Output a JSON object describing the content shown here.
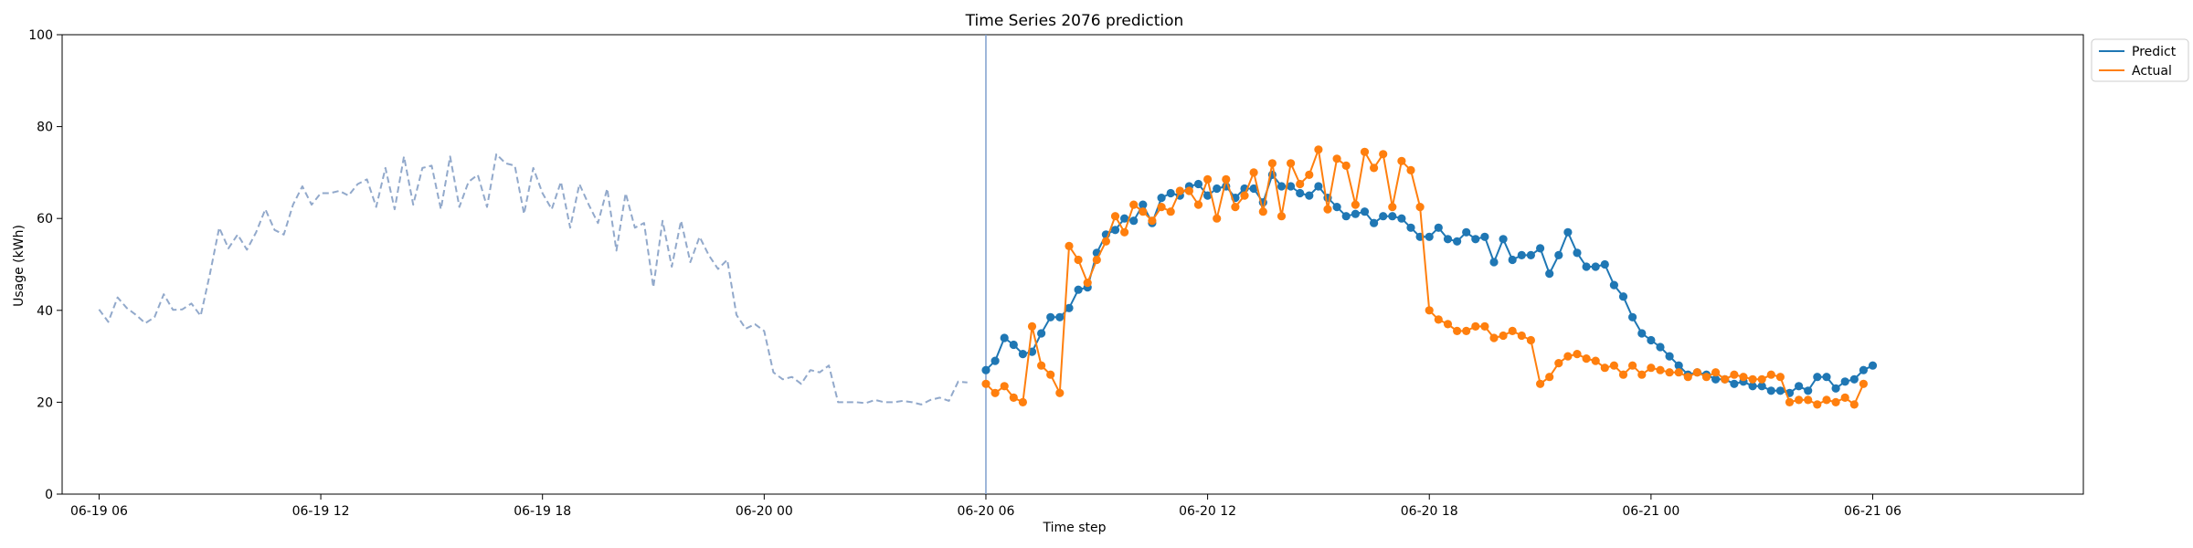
{
  "chart_data": {
    "type": "line",
    "title": "Time Series 2076 prediction",
    "xlabel": "Time step",
    "ylabel": "Usage (kWh)",
    "ylim": [
      0,
      100
    ],
    "xlim": [
      -1.0,
      53.7
    ],
    "x_axis_note": "x values are hours since 06-19 06",
    "x_ticks": [
      {
        "x": 0,
        "label": "06-19 06"
      },
      {
        "x": 6,
        "label": "06-19 12"
      },
      {
        "x": 12,
        "label": "06-19 18"
      },
      {
        "x": 18,
        "label": "06-20 00"
      },
      {
        "x": 24,
        "label": "06-20 06"
      },
      {
        "x": 30,
        "label": "06-20 12"
      },
      {
        "x": 36,
        "label": "06-20 18"
      },
      {
        "x": 42,
        "label": "06-21 00"
      },
      {
        "x": 48,
        "label": "06-21 06"
      }
    ],
    "y_ticks": [
      0,
      20,
      40,
      60,
      80,
      100
    ],
    "grid": false,
    "legend": {
      "position": "top-right",
      "entries": [
        "Predict",
        "Actual"
      ]
    },
    "colors": {
      "history": "#92a9cb",
      "predict": "#1f77b4",
      "actual": "#ff7f0e",
      "vline": "#7f9fce"
    },
    "vline_x": 24,
    "series": [
      {
        "key": "history",
        "style": "dashed",
        "x_start": 0,
        "x_step": 0.25,
        "values": [
          40.2,
          37.5,
          42.8,
          40.5,
          39.0,
          37.2,
          38.5,
          43.5,
          40.1,
          40.2,
          41.5,
          38.8,
          48.0,
          58.0,
          53.5,
          56.5,
          53.2,
          57.0,
          62.0,
          57.5,
          56.5,
          63.0,
          67.0,
          63.0,
          65.5,
          65.5,
          66.0,
          65.0,
          67.5,
          68.5,
          62.5,
          71.0,
          62.0,
          73.5,
          63.0,
          71.0,
          71.5,
          62.0,
          73.5,
          62.5,
          68.0,
          69.5,
          62.5,
          74.0,
          72.0,
          71.5,
          61.0,
          71.0,
          65.5,
          62.0,
          68.0,
          58.0,
          67.5,
          63.0,
          59.0,
          66.5,
          53.0,
          65.5,
          58.0,
          59.0,
          45.0,
          59.5,
          49.5,
          59.5,
          50.5,
          56.0,
          52.0,
          49.0,
          51.0,
          39.0,
          36.0,
          37.0,
          35.5,
          26.5,
          25.0,
          25.5,
          24.0,
          27.0,
          26.5,
          28.0,
          20.0,
          20.0,
          20.0,
          19.8,
          20.5,
          20.0,
          20.0,
          20.3,
          20.0,
          19.5,
          20.5,
          21.0,
          20.3,
          24.5,
          24.3
        ]
      },
      {
        "key": "predict",
        "name": "Predict",
        "style": "solid-markers",
        "x_start": 24,
        "x_step": 0.25,
        "values": [
          27.0,
          29.0,
          34.0,
          32.5,
          30.5,
          31.0,
          35.0,
          38.5,
          38.5,
          40.5,
          44.5,
          45.0,
          52.5,
          56.5,
          57.5,
          60.0,
          59.5,
          63.0,
          59.0,
          64.5,
          65.5,
          65.0,
          67.0,
          67.5,
          65.0,
          66.5,
          67.0,
          64.5,
          66.5,
          66.5,
          63.5,
          69.5,
          67.0,
          67.0,
          65.5,
          65.0,
          67.0,
          64.5,
          62.5,
          60.5,
          61.0,
          61.5,
          59.0,
          60.5,
          60.5,
          60.0,
          58.0,
          56.0,
          56.0,
          58.0,
          55.5,
          55.0,
          57.0,
          55.5,
          56.0,
          50.5,
          55.5,
          51.0,
          52.0,
          52.0,
          53.5,
          48.0,
          52.0,
          57.0,
          52.5,
          49.5,
          49.5,
          50.0,
          45.5,
          43.0,
          38.5,
          35.0,
          33.5,
          32.0,
          30.0,
          28.0,
          26.0,
          26.5,
          26.0,
          25.0,
          25.0,
          24.0,
          24.5,
          23.5,
          23.5,
          22.5,
          22.5,
          22.0,
          23.5,
          22.5,
          25.5,
          25.5,
          23.0,
          24.5,
          25.0,
          27.0,
          28.0
        ]
      },
      {
        "key": "actual",
        "name": "Actual",
        "style": "solid-markers",
        "x_start": 24,
        "x_step": 0.25,
        "values": [
          24.0,
          22.0,
          23.5,
          21.0,
          20.0,
          36.5,
          28.0,
          26.0,
          22.0,
          54.0,
          51.0,
          46.0,
          51.0,
          55.0,
          60.5,
          57.0,
          63.0,
          61.5,
          59.5,
          62.5,
          61.5,
          66.0,
          66.0,
          63.0,
          68.5,
          60.0,
          68.5,
          62.5,
          65.0,
          70.0,
          61.5,
          72.0,
          60.5,
          72.0,
          67.5,
          69.5,
          75.0,
          62.0,
          73.0,
          71.5,
          63.0,
          74.5,
          71.0,
          74.0,
          62.5,
          72.5,
          70.5,
          62.5,
          40.0,
          38.0,
          37.0,
          35.5,
          35.5,
          36.5,
          36.5,
          34.0,
          34.5,
          35.5,
          34.5,
          33.5,
          24.0,
          25.5,
          28.5,
          30.0,
          30.5,
          29.5,
          29.0,
          27.5,
          28.0,
          26.0,
          28.0,
          26.0,
          27.5,
          27.0,
          26.5,
          26.5,
          25.5,
          26.5,
          25.5,
          26.5,
          25.0,
          26.0,
          25.5,
          25.0,
          25.0,
          26.0,
          25.5,
          20.0,
          20.5,
          20.5,
          19.5,
          20.5,
          20.0,
          21.0,
          19.5,
          24.0
        ]
      }
    ]
  }
}
